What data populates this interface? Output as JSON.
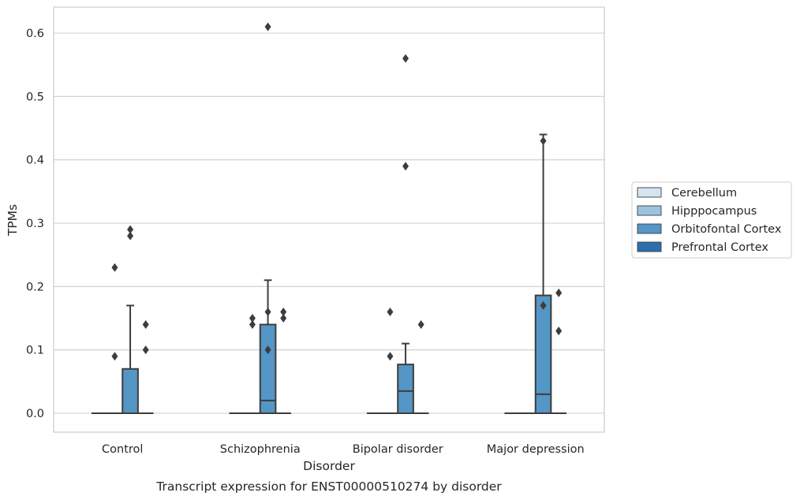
{
  "chart_data": {
    "type": "box",
    "caption": "Transcript expression for ENST00000510274 by disorder",
    "xlabel": "Disorder",
    "ylabel": "TPMs",
    "ylim": [
      -0.03,
      0.64
    ],
    "yticks": [
      "0.0",
      "0.1",
      "0.2",
      "0.3",
      "0.4",
      "0.5",
      "0.6"
    ],
    "ytick_values": [
      0,
      0.1,
      0.2,
      0.3,
      0.4,
      0.5,
      0.6
    ],
    "grid": true,
    "legend_position": "right",
    "categories": [
      "Control",
      "Schizophrenia",
      "Bipolar disorder",
      "Major depression"
    ],
    "series": [
      {
        "name": "Cerebellum",
        "color": "#d4e4f1",
        "boxes": [
          {
            "min": 0,
            "q1": 0,
            "median": 0,
            "q3": 0,
            "max": 0,
            "outliers": []
          },
          {
            "min": 0,
            "q1": 0,
            "median": 0,
            "q3": 0,
            "max": 0,
            "outliers": []
          },
          {
            "min": 0,
            "q1": 0,
            "median": 0,
            "q3": 0,
            "max": 0,
            "outliers": []
          },
          {
            "min": 0,
            "q1": 0,
            "median": 0,
            "q3": 0,
            "max": 0,
            "outliers": []
          }
        ]
      },
      {
        "name": "Hipppocampus",
        "color": "#9cc4dd",
        "boxes": [
          {
            "min": 0,
            "q1": 0,
            "median": 0,
            "q3": 0,
            "max": 0,
            "outliers": [
              0.09,
              0.23
            ]
          },
          {
            "min": 0,
            "q1": 0,
            "median": 0,
            "q3": 0,
            "max": 0,
            "outliers": [
              0.14,
              0.15
            ]
          },
          {
            "min": 0,
            "q1": 0,
            "median": 0,
            "q3": 0,
            "max": 0,
            "outliers": [
              0.09,
              0.16
            ]
          },
          {
            "min": 0,
            "q1": 0,
            "median": 0,
            "q3": 0,
            "max": 0,
            "outliers": []
          }
        ]
      },
      {
        "name": "Orbitofontal Cortex",
        "color": "#5496c5",
        "boxes": [
          {
            "min": 0,
            "q1": 0,
            "median": 0,
            "q3": 0.07,
            "max": 0.17,
            "outliers": [
              0.28,
              0.29
            ]
          },
          {
            "min": 0,
            "q1": 0,
            "median": 0.02,
            "q3": 0.14,
            "max": 0.21,
            "outliers": [
              0.1,
              0.16,
              0.61
            ]
          },
          {
            "min": 0,
            "q1": 0,
            "median": 0.035,
            "q3": 0.077,
            "max": 0.11,
            "outliers": [
              0.39,
              0.56
            ]
          },
          {
            "min": 0,
            "q1": 0,
            "median": 0.03,
            "q3": 0.186,
            "max": 0.44,
            "outliers": [
              0.17,
              0.43
            ]
          }
        ]
      },
      {
        "name": "Prefrontal Cortex",
        "color": "#2c6fad",
        "boxes": [
          {
            "min": 0,
            "q1": 0,
            "median": 0,
            "q3": 0,
            "max": 0,
            "outliers": [
              0.1,
              0.14
            ]
          },
          {
            "min": 0,
            "q1": 0,
            "median": 0,
            "q3": 0,
            "max": 0,
            "outliers": [
              0.15,
              0.16
            ]
          },
          {
            "min": 0,
            "q1": 0,
            "median": 0,
            "q3": 0,
            "max": 0,
            "outliers": [
              0.14
            ]
          },
          {
            "min": 0,
            "q1": 0,
            "median": 0,
            "q3": 0,
            "max": 0,
            "outliers": [
              0.13,
              0.19
            ]
          }
        ]
      }
    ]
  }
}
